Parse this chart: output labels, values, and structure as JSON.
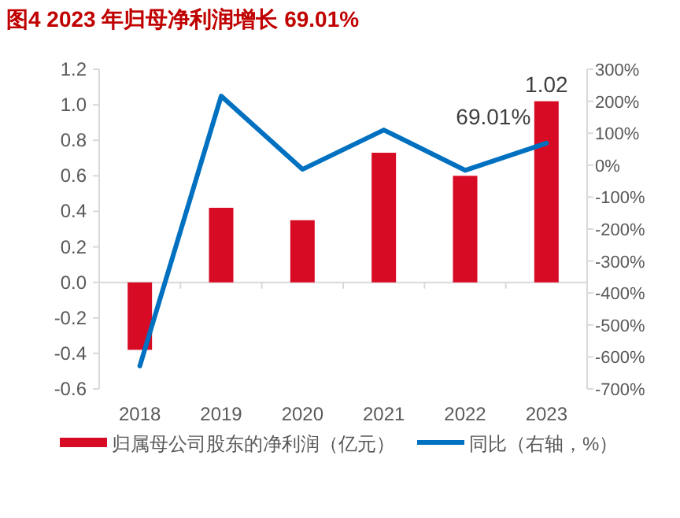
{
  "chart_data": {
    "type": "bar",
    "title": "图4  2023 年归母净利润增长 69.01%",
    "categories": [
      "2018",
      "2019",
      "2020",
      "2021",
      "2022",
      "2023"
    ],
    "series": [
      {
        "name": "归属母公司股东的净利润（亿元）",
        "color": "#d70c24",
        "values": [
          -0.38,
          0.42,
          0.35,
          0.73,
          0.6,
          1.02
        ],
        "value_labels": [
          null,
          null,
          null,
          null,
          null,
          "1.02"
        ]
      },
      {
        "name": "同比（右轴，%）",
        "type": "line",
        "axis": "y2",
        "color": "#0070c0",
        "values": [
          -628,
          216,
          -13,
          110,
          -16,
          69.01
        ],
        "value_labels": [
          null,
          null,
          null,
          null,
          null,
          "69.01%"
        ]
      }
    ],
    "ylim": [
      -0.6,
      1.2
    ],
    "yticks": [
      {
        "value": -0.6,
        "label": "-0.6"
      },
      {
        "value": -0.4,
        "label": "-0.4"
      },
      {
        "value": -0.2,
        "label": "-0.2"
      },
      {
        "value": 0,
        "label": "0.0"
      },
      {
        "value": 0.2,
        "label": "0.2"
      },
      {
        "value": 0.4,
        "label": "0.4"
      },
      {
        "value": 0.6,
        "label": "0.6"
      },
      {
        "value": 0.8,
        "label": "0.8"
      },
      {
        "value": 1.0,
        "label": "1.0"
      },
      {
        "value": 1.2,
        "label": "1.2"
      }
    ],
    "y2lim": [
      -700,
      300
    ],
    "y2ticks": [
      {
        "value": -700,
        "label": "-700%"
      },
      {
        "value": -600,
        "label": "-600%"
      },
      {
        "value": -500,
        "label": "-500%"
      },
      {
        "value": -400,
        "label": "-400%"
      },
      {
        "value": -300,
        "label": "-300%"
      },
      {
        "value": -200,
        "label": "-200%"
      },
      {
        "value": -100,
        "label": "-100%"
      },
      {
        "value": 0,
        "label": "0%"
      },
      {
        "value": 100,
        "label": "100%"
      },
      {
        "value": 200,
        "label": "200%"
      },
      {
        "value": 300,
        "label": "300%"
      }
    ],
    "legend": "bottom"
  }
}
